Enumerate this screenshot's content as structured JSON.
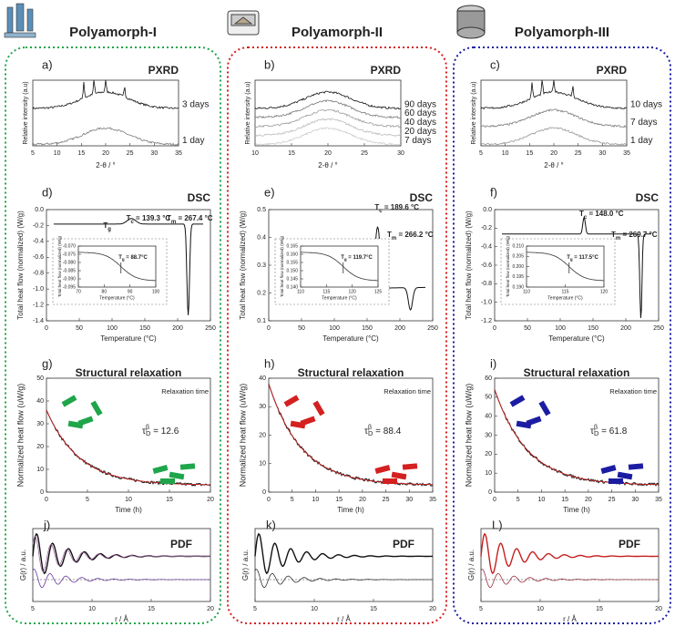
{
  "columns": [
    {
      "title": "Polyamorph-I",
      "pxrd": {
        "label": "a)",
        "title": "PXRD",
        "xticks": [
          "5",
          "10",
          "15",
          "20",
          "25",
          "30",
          "35"
        ],
        "xlabel": "2-θ / °",
        "ylabel": "Relative intensity (a.u)",
        "curves": [
          "3 days",
          "1 day"
        ]
      },
      "dsc": {
        "label": "d)",
        "title": "DSC",
        "yticks": [
          "0.0",
          "-0.2",
          "-0.4",
          "-0.6",
          "-0.8",
          "-1.0",
          "-1.2",
          "-1.4"
        ],
        "xticks": [
          "0",
          "50",
          "100",
          "150",
          "200",
          "250"
        ],
        "xlabel": "Temperature (°C)",
        "ylabel": "Total heat flow (normalized) (W/g)",
        "tg": {
          "main": "T",
          "sub": "g"
        },
        "tc": {
          "main": "T",
          "sub": "c",
          "rest": " = 139.3 °C"
        },
        "tm": {
          "main": "T",
          "sub": "m",
          "rest": " = 267.4 °C"
        },
        "inset": {
          "yticks": [
            "-0.070",
            "-0.075",
            "-0.080",
            "-0.085",
            "-0.090",
            "-0.095"
          ],
          "xticks": [
            "70",
            "80",
            "90",
            "100"
          ],
          "xlabel": "Temperature (°C)",
          "ylabel": "Total heat flow (normalized) (W/g)",
          "tg": {
            "main": "T",
            "sub": "g",
            "rest": " = 88.7°C"
          }
        }
      },
      "relax": {
        "label": "g)",
        "title": "Structural relaxation",
        "subtitle": "Relaxation time",
        "yticks": [
          "50",
          "40",
          "30",
          "20",
          "10",
          "0"
        ],
        "xticks": [
          "0",
          "5",
          "10",
          "15",
          "20"
        ],
        "xlabel": "Time (h)",
        "ylabel": "Normalized heat flow (uW/g)",
        "tau": {
          "main": "τ",
          "sup": "β",
          "sub": "D",
          "rest": " = 12.6"
        }
      },
      "pdf": {
        "label": "j)",
        "title": "PDF",
        "xticks": [
          "5",
          "10",
          "15",
          "20"
        ],
        "xlabel": "r / Å",
        "ylabel": "G(r) / a.u."
      }
    },
    {
      "title": "Polyamorph-II",
      "pxrd": {
        "label": "b)",
        "title": "PXRD",
        "xticks": [
          "10",
          "15",
          "20",
          "25",
          "30"
        ],
        "xlabel": "2-θ / °",
        "ylabel": "Relative intensity (a.u)",
        "curves": [
          "90 days",
          "60 days",
          "40 days",
          "20 days",
          "7 days"
        ]
      },
      "dsc": {
        "label": "e)",
        "title": "DSC",
        "yticks": [
          "0.5",
          "0.4",
          "0.3",
          "0.2",
          "0.1"
        ],
        "xticks": [
          "0",
          "50",
          "100",
          "150",
          "200",
          "250"
        ],
        "xlabel": "Temperature (°C)",
        "ylabel": "Total heat flow (normalized) (W/g)",
        "tg": {
          "main": "T",
          "sub": "g"
        },
        "tc": {
          "main": "T",
          "sub": "c",
          "rest": " = 189.6 °C"
        },
        "tm": {
          "main": "T",
          "sub": "m",
          "rest": " = 266.2 °C"
        },
        "inset": {
          "yticks": [
            "0.165",
            "0.160",
            "0.155",
            "0.150",
            "0.145",
            "0.140"
          ],
          "xticks": [
            "110",
            "115",
            "120",
            "125"
          ],
          "xlabel": "Temperature (°C)",
          "ylabel": "Total heat flow (normalized) (W/g)",
          "tg": {
            "main": "T",
            "sub": "g",
            "rest": " = 119.7°C"
          }
        }
      },
      "relax": {
        "label": "h)",
        "title": "Structural relaxation",
        "subtitle": "Relaxation time",
        "yticks": [
          "40",
          "30",
          "20",
          "10",
          "0"
        ],
        "xticks": [
          "0",
          "5",
          "10",
          "15",
          "20",
          "25",
          "30",
          "35"
        ],
        "xlabel": "Time (h)",
        "ylabel": "Normalized heat flow (uW/g)",
        "tau": {
          "main": "τ",
          "sup": "β",
          "sub": "D",
          "rest": " = 88.4"
        }
      },
      "pdf": {
        "label": "k)",
        "title": "PDF",
        "xticks": [
          "5",
          "10",
          "15",
          "20"
        ],
        "xlabel": "r / Å",
        "ylabel": "G(r) / a.u."
      }
    },
    {
      "title": "Polyamorph-III",
      "pxrd": {
        "label": "c)",
        "title": "PXRD",
        "xticks": [
          "5",
          "10",
          "15",
          "20",
          "25",
          "30",
          "35"
        ],
        "xlabel": "2-θ / °",
        "ylabel": "Relative intensity (a.u)",
        "curves": [
          "10 days",
          "7 days",
          "1 day"
        ]
      },
      "dsc": {
        "label": "f)",
        "title": "DSC",
        "yticks": [
          "0.0",
          "-0.2",
          "-0.4",
          "-0.6",
          "-0.8",
          "-1.0",
          "-1.2"
        ],
        "xticks": [
          "0",
          "50",
          "100",
          "150",
          "200",
          "250"
        ],
        "xlabel": "Temperature (°C)",
        "ylabel": "Total heat flow (normalized) (W/g)",
        "tg": {
          "main": "T",
          "sub": "g"
        },
        "tc": {
          "main": "T",
          "sub": "c",
          "rest": " = 148.0 °C"
        },
        "tm": {
          "main": "T",
          "sub": "m",
          "rest": " = 269.7 °C"
        },
        "inset": {
          "yticks": [
            "0.210",
            "0.205",
            "0.200",
            "0.195",
            "0.190"
          ],
          "xticks": [
            "110",
            "115",
            "120"
          ],
          "xlabel": "Temperature (°C)",
          "ylabel": "Total heat flow (normalized) (W/g)",
          "tg": {
            "main": "T",
            "sub": "g",
            "rest": " = 117.5°C"
          }
        }
      },
      "relax": {
        "label": "i)",
        "title": "Structural relaxation",
        "subtitle": "Relaxation time",
        "yticks": [
          "60",
          "50",
          "40",
          "30",
          "20",
          "10",
          "0"
        ],
        "xticks": [
          "0",
          "5",
          "10",
          "15",
          "20",
          "25",
          "30",
          "35"
        ],
        "xlabel": "Time (h)",
        "ylabel": "Normalized heat flow (uW/g)",
        "tau": {
          "main": "τ",
          "sup": "β",
          "sub": "D",
          "rest": " = 61.8"
        }
      },
      "pdf": {
        "label": "L)",
        "title": "PDF",
        "xticks": [
          "5",
          "10",
          "15",
          "20"
        ],
        "xlabel": "r / Å",
        "ylabel": "G(r) / a.u."
      }
    }
  ]
}
